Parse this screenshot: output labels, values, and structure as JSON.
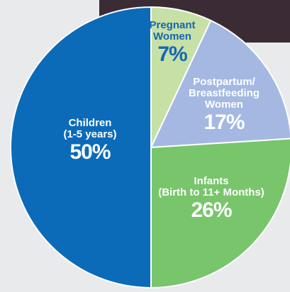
{
  "chart_data": {
    "type": "pie",
    "categories": [
      "Pregnant\nWomen",
      "Postpartum/\nBreastfeeding\nWomen",
      "Infants\n(Birth to 11+ Months)",
      "Children\n(1-5 years)"
    ],
    "values": [
      7,
      17,
      26,
      50
    ],
    "value_labels": [
      "7%",
      "17%",
      "26%",
      "50%"
    ],
    "colors": [
      "#c6e0a6",
      "#a4b8e2",
      "#78c56b",
      "#0b6bb8"
    ],
    "label_colors": [
      "#1566b3",
      "#ffffff",
      "#ffffff",
      "#ffffff"
    ]
  }
}
